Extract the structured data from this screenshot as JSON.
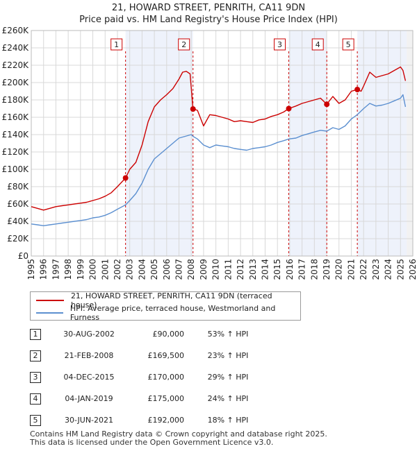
{
  "header": {
    "title_line1": "21, HOWARD STREET, PENRITH, CA11 9DN",
    "title_line2": "Price paid vs. HM Land Registry's House Price Index (HPI)"
  },
  "legend": {
    "property_label": "21, HOWARD STREET, PENRITH, CA11 9DN (terraced house)",
    "hpi_label": "HPI: Average price, terraced house, Westmorland and Furness"
  },
  "sales": [
    {
      "num": "1",
      "date": "30-AUG-2002",
      "price": "£90,000",
      "hpi": "53% ↑ HPI"
    },
    {
      "num": "2",
      "date": "21-FEB-2008",
      "price": "£169,500",
      "hpi": "23% ↑ HPI"
    },
    {
      "num": "3",
      "date": "04-DEC-2015",
      "price": "£170,000",
      "hpi": "29% ↑ HPI"
    },
    {
      "num": "4",
      "date": "04-JAN-2019",
      "price": "£175,000",
      "hpi": "24% ↑ HPI"
    },
    {
      "num": "5",
      "date": "30-JUN-2021",
      "price": "£192,000",
      "hpi": "18% ↑ HPI"
    }
  ],
  "footer": {
    "line1": "Contains HM Land Registry data © Crown copyright and database right 2025.",
    "line2": "This data is licensed under the Open Government Licence v3.0."
  },
  "chart_data": {
    "type": "line",
    "xlim": [
      1995,
      2026
    ],
    "ylim": [
      0,
      260000
    ],
    "y_ticks": [
      0,
      20000,
      40000,
      60000,
      80000,
      100000,
      120000,
      140000,
      160000,
      180000,
      200000,
      220000,
      240000,
      260000
    ],
    "y_tick_labels": [
      "£0",
      "£20K",
      "£40K",
      "£60K",
      "£80K",
      "£100K",
      "£120K",
      "£140K",
      "£160K",
      "£180K",
      "£200K",
      "£220K",
      "£240K",
      "£260K"
    ],
    "x_ticks": [
      1995,
      1996,
      1997,
      1998,
      1999,
      2000,
      2001,
      2002,
      2003,
      2004,
      2005,
      2006,
      2007,
      2008,
      2009,
      2010,
      2011,
      2012,
      2013,
      2014,
      2015,
      2016,
      2017,
      2018,
      2019,
      2020,
      2021,
      2022,
      2023,
      2024,
      2025,
      2026
    ],
    "x_tick_labels": [
      "1995",
      "1996",
      "1997",
      "1998",
      "1999",
      "2000",
      "2001",
      "2002",
      "2003",
      "2004",
      "2005",
      "2006",
      "2007",
      "2008",
      "2009",
      "2010",
      "2011",
      "2012",
      "2013",
      "2014",
      "2015",
      "2016",
      "2017",
      "2018",
      "2019",
      "2020",
      "2021",
      "2022",
      "2023",
      "2024",
      "2025",
      "2026"
    ],
    "grid": true,
    "shaded_periods": [
      [
        2002.66,
        2008.14
      ],
      [
        2015.92,
        2019.01
      ],
      [
        2021.49,
        2025.5
      ]
    ],
    "series": [
      {
        "name": "property",
        "color": "#cc0000",
        "x": [
          1995,
          1995.5,
          1996,
          1996.5,
          1997,
          1997.5,
          1998,
          1998.5,
          1999,
          1999.5,
          2000,
          2000.5,
          2001,
          2001.5,
          2002,
          2002.66,
          2003,
          2003.5,
          2004,
          2004.5,
          2005,
          2005.5,
          2006,
          2006.5,
          2007,
          2007.3,
          2007.6,
          2007.9,
          2008.14,
          2008.5,
          2009,
          2009.5,
          2010,
          2010.5,
          2011,
          2011.5,
          2012,
          2012.5,
          2013,
          2013.5,
          2014,
          2014.5,
          2015,
          2015.5,
          2015.92,
          2016.5,
          2017,
          2017.5,
          2018,
          2018.5,
          2019.01,
          2019.5,
          2020,
          2020.5,
          2021,
          2021.49,
          2021.8,
          2022,
          2022.5,
          2023,
          2023.5,
          2024,
          2024.5,
          2025,
          2025.2,
          2025.4
        ],
        "values": [
          57000,
          55000,
          53000,
          55000,
          57000,
          58000,
          59000,
          60000,
          61000,
          62000,
          64000,
          66000,
          69000,
          73000,
          80000,
          90000,
          100000,
          108000,
          128000,
          155000,
          172000,
          180000,
          186000,
          193000,
          204000,
          212000,
          213000,
          210000,
          169500,
          168000,
          150000,
          163000,
          162000,
          160000,
          158000,
          155000,
          156000,
          155000,
          154000,
          157000,
          158000,
          161000,
          163000,
          166000,
          170000,
          173000,
          176000,
          178000,
          180000,
          182000,
          175000,
          184000,
          176000,
          180000,
          190000,
          192000,
          190000,
          196000,
          212000,
          206000,
          208000,
          210000,
          214000,
          218000,
          214000,
          202000
        ]
      },
      {
        "name": "hpi",
        "color": "#5b8fd0",
        "x": [
          1995,
          1995.5,
          1996,
          1996.5,
          1997,
          1997.5,
          1998,
          1998.5,
          1999,
          1999.5,
          2000,
          2000.5,
          2001,
          2001.5,
          2002,
          2002.66,
          2003,
          2003.5,
          2004,
          2004.5,
          2005,
          2005.5,
          2006,
          2006.5,
          2007,
          2007.5,
          2008,
          2008.14,
          2008.5,
          2009,
          2009.5,
          2010,
          2010.5,
          2011,
          2011.5,
          2012,
          2012.5,
          2013,
          2013.5,
          2014,
          2014.5,
          2015,
          2015.5,
          2015.92,
          2016.5,
          2017,
          2017.5,
          2018,
          2018.5,
          2019.01,
          2019.5,
          2020,
          2020.5,
          2021,
          2021.49,
          2022,
          2022.5,
          2023,
          2023.5,
          2024,
          2024.5,
          2025,
          2025.2,
          2025.4
        ],
        "values": [
          37000,
          36000,
          35000,
          36000,
          37000,
          38000,
          39000,
          40000,
          41000,
          42000,
          44000,
          45000,
          47000,
          50000,
          54000,
          59000,
          64000,
          72000,
          84000,
          100000,
          112000,
          118000,
          124000,
          130000,
          136000,
          138000,
          140000,
          138000,
          135000,
          128000,
          125000,
          128000,
          127000,
          126000,
          124000,
          123000,
          122000,
          124000,
          125000,
          126000,
          128000,
          131000,
          133000,
          135000,
          136000,
          139000,
          141000,
          143000,
          145000,
          144000,
          148000,
          146000,
          150000,
          158000,
          163000,
          170000,
          176000,
          173000,
          174000,
          176000,
          179000,
          182000,
          186000,
          172000
        ]
      }
    ],
    "markers": [
      {
        "label": "1",
        "x": 2002.66,
        "y": 90000
      },
      {
        "label": "2",
        "x": 2008.14,
        "y": 169500
      },
      {
        "label": "3",
        "x": 2015.92,
        "y": 170000
      },
      {
        "label": "4",
        "x": 2019.01,
        "y": 175000
      },
      {
        "label": "5",
        "x": 2021.49,
        "y": 192000
      }
    ]
  }
}
